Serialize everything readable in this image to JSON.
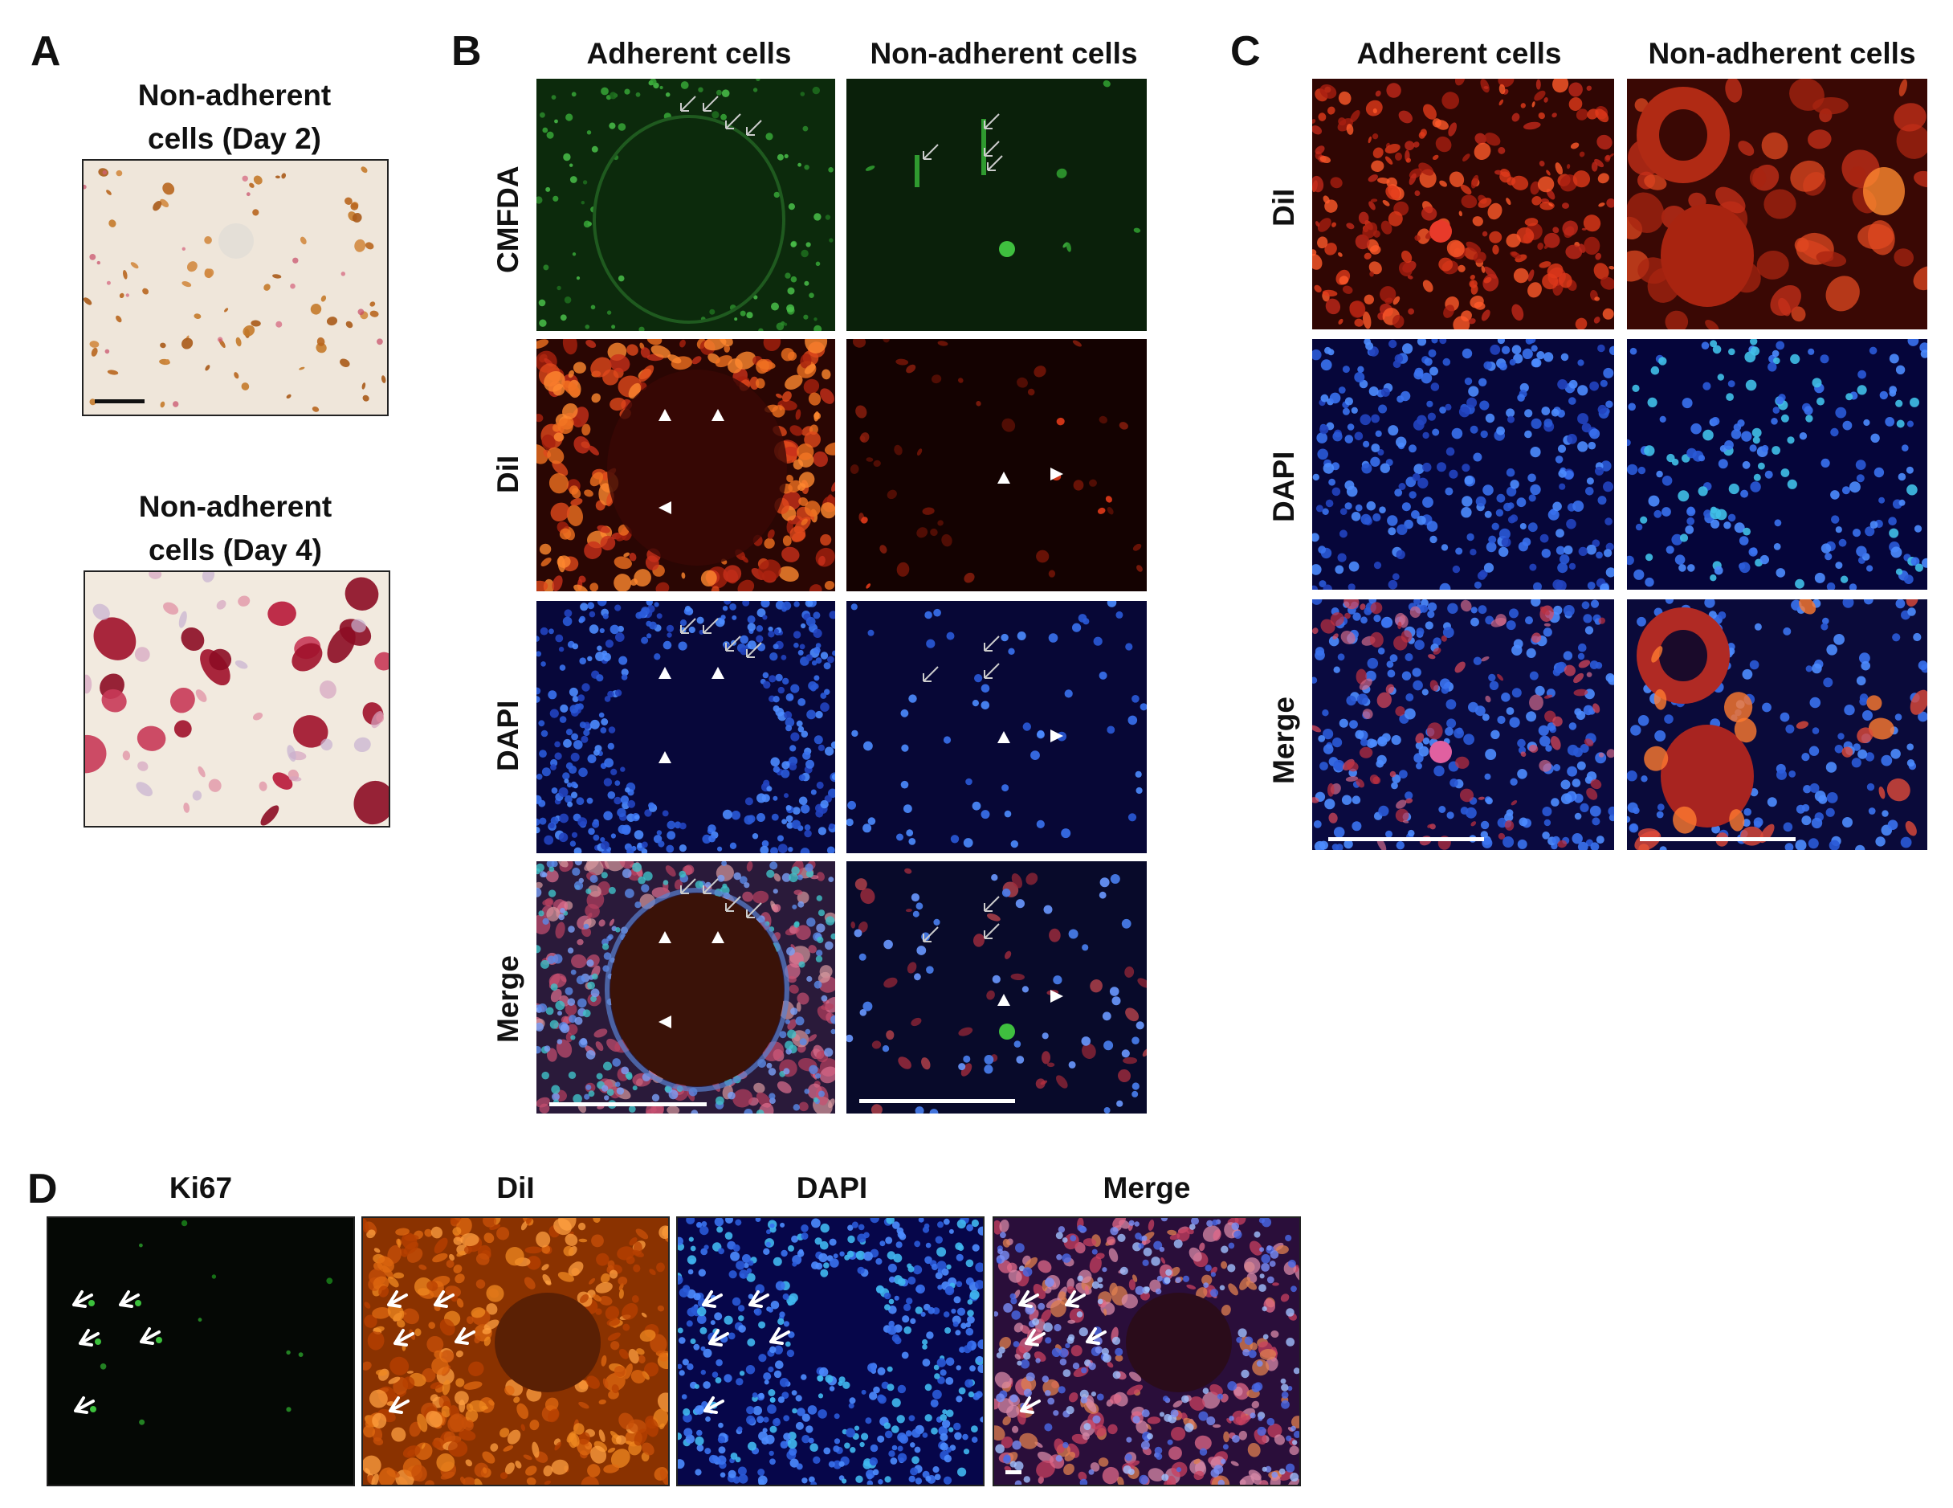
{
  "panelA": {
    "letter": "A",
    "img1_title": "Non-adherent cells (Day 2)",
    "img2_title": "Non-adherent cells (Day 4)"
  },
  "panelB": {
    "letter": "B",
    "columns": [
      "Adherent cells",
      "Non-adherent cells"
    ],
    "rows": [
      "CMFDA",
      "DiI",
      "DAPI",
      "Merge"
    ]
  },
  "panelC": {
    "letter": "C",
    "columns": [
      "Adherent cells",
      "Non-adherent cells"
    ],
    "rows": [
      "DiI",
      "DAPI",
      "Merge"
    ]
  },
  "panelD": {
    "letter": "D",
    "columns": [
      "Ki67",
      "DiI",
      "DAPI",
      "Merge"
    ]
  },
  "colors": {
    "cmfda_bg": "#0c2a0c",
    "dii_bg": "#1c0402",
    "dapi_bg": "#07073a",
    "merge_bg": "#180a30",
    "stain_bg": "#efe6da",
    "ki67_bg": "#050805",
    "dii_orange_bg": "#8a3200"
  }
}
